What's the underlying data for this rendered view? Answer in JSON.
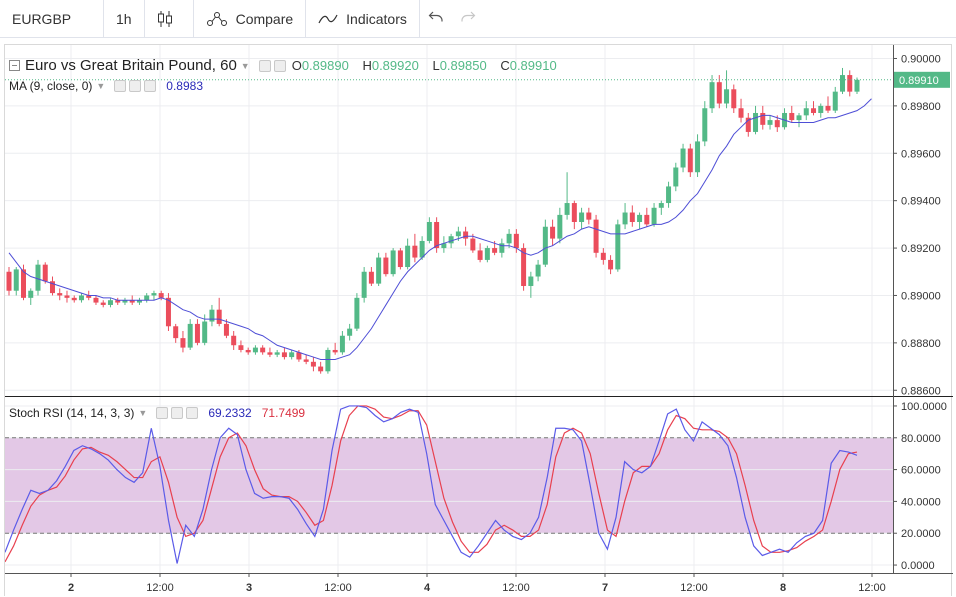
{
  "toolbar": {
    "symbol": "EURGBP",
    "interval": "1h",
    "compare": "Compare",
    "indicators": "Indicators"
  },
  "main": {
    "title": "Euro vs Great Britain Pound, 60",
    "open_label": "O",
    "open": "0.89890",
    "high_label": "H",
    "high": "0.89920",
    "low_label": "L",
    "low": "0.89850",
    "close_label": "C",
    "close": "0.89910",
    "ma_label": "MA (9, close, 0)",
    "ma_value": "0.8983",
    "last_price": "0.89910",
    "y_ticks": [
      "0.90000",
      "0.89800",
      "0.89600",
      "0.89400",
      "0.89200",
      "0.89000",
      "0.88800",
      "0.88600"
    ]
  },
  "rsi": {
    "label": "Stoch RSI (14, 14, 3, 3)",
    "k_value": "69.2332",
    "d_value": "71.7499",
    "y_ticks": [
      "100.0000",
      "80.0000",
      "60.0000",
      "40.0000",
      "20.0000",
      "0.0000"
    ]
  },
  "x_axis": [
    "2",
    "12:00",
    "3",
    "12:00",
    "4",
    "12:00",
    "7",
    "12:00",
    "8",
    "12:00"
  ],
  "colors": {
    "up": "#53b987",
    "down": "#eb4d5c",
    "ma": "#4e4ed6",
    "k_line": "#5b5be8",
    "d_line": "#e8404f",
    "band": "#e3c8e6"
  },
  "chart_data": {
    "type": "candlestick",
    "ylim": [
      0.8858,
      0.9004
    ],
    "x_labels": [
      "2",
      "12:00",
      "3",
      "12:00",
      "4",
      "12:00",
      "7",
      "12:00",
      "8",
      "12:00"
    ],
    "candles": [
      [
        0.891,
        0.8912,
        0.89,
        0.8902
      ],
      [
        0.8902,
        0.8912,
        0.89,
        0.8911
      ],
      [
        0.8911,
        0.8913,
        0.8898,
        0.8899
      ],
      [
        0.8899,
        0.8903,
        0.8896,
        0.8902
      ],
      [
        0.8902,
        0.8915,
        0.89,
        0.8913
      ],
      [
        0.8913,
        0.8914,
        0.8905,
        0.8906
      ],
      [
        0.8906,
        0.8908,
        0.89,
        0.8901
      ],
      [
        0.8901,
        0.8903,
        0.8898,
        0.89
      ],
      [
        0.89,
        0.8902,
        0.8897,
        0.8899
      ],
      [
        0.8899,
        0.89,
        0.8897,
        0.8898
      ],
      [
        0.8898,
        0.8901,
        0.8897,
        0.89
      ],
      [
        0.89,
        0.8902,
        0.8898,
        0.8899
      ],
      [
        0.8899,
        0.89,
        0.8896,
        0.8897
      ],
      [
        0.8897,
        0.8898,
        0.8895,
        0.8896
      ],
      [
        0.8896,
        0.8899,
        0.8895,
        0.8898
      ],
      [
        0.8898,
        0.8899,
        0.8896,
        0.8897
      ],
      [
        0.8897,
        0.8899,
        0.8896,
        0.8898
      ],
      [
        0.8898,
        0.89,
        0.8896,
        0.8897
      ],
      [
        0.8897,
        0.8899,
        0.8896,
        0.8898
      ],
      [
        0.8898,
        0.8901,
        0.8897,
        0.89
      ],
      [
        0.89,
        0.8902,
        0.8898,
        0.8901
      ],
      [
        0.8901,
        0.8902,
        0.8898,
        0.8899
      ],
      [
        0.8899,
        0.8901,
        0.8885,
        0.8887
      ],
      [
        0.8887,
        0.8888,
        0.888,
        0.8882
      ],
      [
        0.8882,
        0.8885,
        0.8876,
        0.8878
      ],
      [
        0.8878,
        0.889,
        0.8877,
        0.8888
      ],
      [
        0.8888,
        0.889,
        0.8879,
        0.888
      ],
      [
        0.888,
        0.8892,
        0.8879,
        0.8889
      ],
      [
        0.8889,
        0.8896,
        0.8887,
        0.8894
      ],
      [
        0.8894,
        0.8899,
        0.8887,
        0.8888
      ],
      [
        0.8888,
        0.889,
        0.8882,
        0.8883
      ],
      [
        0.8883,
        0.8885,
        0.8877,
        0.8879
      ],
      [
        0.8879,
        0.8881,
        0.8876,
        0.8877
      ],
      [
        0.8877,
        0.8878,
        0.8875,
        0.8876
      ],
      [
        0.8876,
        0.8879,
        0.8875,
        0.8878
      ],
      [
        0.8878,
        0.8879,
        0.8875,
        0.8876
      ],
      [
        0.8876,
        0.8878,
        0.8874,
        0.8875
      ],
      [
        0.8875,
        0.8877,
        0.8874,
        0.8876
      ],
      [
        0.8876,
        0.8878,
        0.8873,
        0.8874
      ],
      [
        0.8874,
        0.8877,
        0.8873,
        0.8876
      ],
      [
        0.8876,
        0.8877,
        0.8872,
        0.8873
      ],
      [
        0.8873,
        0.8875,
        0.8871,
        0.8872
      ],
      [
        0.8872,
        0.8874,
        0.8868,
        0.887
      ],
      [
        0.887,
        0.8872,
        0.8867,
        0.8868
      ],
      [
        0.8868,
        0.8878,
        0.8867,
        0.8877
      ],
      [
        0.8877,
        0.888,
        0.8875,
        0.8876
      ],
      [
        0.8876,
        0.8885,
        0.8875,
        0.8883
      ],
      [
        0.8883,
        0.8888,
        0.8881,
        0.8886
      ],
      [
        0.8886,
        0.8901,
        0.8885,
        0.8899
      ],
      [
        0.8899,
        0.8912,
        0.8897,
        0.891
      ],
      [
        0.891,
        0.8912,
        0.8904,
        0.8905
      ],
      [
        0.8905,
        0.8918,
        0.8904,
        0.8916
      ],
      [
        0.8916,
        0.8918,
        0.8908,
        0.8909
      ],
      [
        0.8909,
        0.892,
        0.8908,
        0.8919
      ],
      [
        0.8919,
        0.892,
        0.8911,
        0.8912
      ],
      [
        0.8912,
        0.8924,
        0.8911,
        0.8921
      ],
      [
        0.8921,
        0.8926,
        0.8914,
        0.8916
      ],
      [
        0.8916,
        0.8925,
        0.8915,
        0.8923
      ],
      [
        0.8923,
        0.8933,
        0.8922,
        0.8931
      ],
      [
        0.8931,
        0.8933,
        0.8918,
        0.892
      ],
      [
        0.892,
        0.8925,
        0.8918,
        0.8922
      ],
      [
        0.8922,
        0.8926,
        0.892,
        0.8925
      ],
      [
        0.8925,
        0.8929,
        0.8923,
        0.8927
      ],
      [
        0.8927,
        0.8929,
        0.8921,
        0.8924
      ],
      [
        0.8924,
        0.8926,
        0.8918,
        0.8919
      ],
      [
        0.8919,
        0.8922,
        0.8914,
        0.8915
      ],
      [
        0.8915,
        0.8921,
        0.8914,
        0.892
      ],
      [
        0.892,
        0.8923,
        0.8917,
        0.8918
      ],
      [
        0.8918,
        0.8924,
        0.8916,
        0.8922
      ],
      [
        0.8922,
        0.8928,
        0.892,
        0.8926
      ],
      [
        0.8926,
        0.8928,
        0.8918,
        0.892
      ],
      [
        0.892,
        0.8922,
        0.8902,
        0.8904
      ],
      [
        0.8904,
        0.891,
        0.8899,
        0.8908
      ],
      [
        0.8908,
        0.8915,
        0.8906,
        0.8913
      ],
      [
        0.8913,
        0.8932,
        0.8912,
        0.8929
      ],
      [
        0.8929,
        0.8932,
        0.8921,
        0.8924
      ],
      [
        0.8924,
        0.8937,
        0.8922,
        0.8934
      ],
      [
        0.8934,
        0.8952,
        0.8932,
        0.8939
      ],
      [
        0.8939,
        0.894,
        0.8928,
        0.8931
      ],
      [
        0.8931,
        0.8937,
        0.8928,
        0.8935
      ],
      [
        0.8935,
        0.8937,
        0.893,
        0.8932
      ],
      [
        0.8932,
        0.8934,
        0.8916,
        0.8918
      ],
      [
        0.8918,
        0.892,
        0.8913,
        0.8915
      ],
      [
        0.8915,
        0.8917,
        0.8909,
        0.8911
      ],
      [
        0.8911,
        0.8932,
        0.891,
        0.893
      ],
      [
        0.893,
        0.8939,
        0.8928,
        0.8935
      ],
      [
        0.8935,
        0.8938,
        0.8929,
        0.8931
      ],
      [
        0.8931,
        0.8935,
        0.8928,
        0.8934
      ],
      [
        0.8934,
        0.8937,
        0.8929,
        0.893
      ],
      [
        0.893,
        0.8939,
        0.8929,
        0.8937
      ],
      [
        0.8937,
        0.894,
        0.8934,
        0.8939
      ],
      [
        0.8939,
        0.8948,
        0.8937,
        0.8946
      ],
      [
        0.8946,
        0.8956,
        0.8944,
        0.8954
      ],
      [
        0.8954,
        0.8964,
        0.8952,
        0.8962
      ],
      [
        0.8962,
        0.8964,
        0.895,
        0.8952
      ],
      [
        0.8952,
        0.8968,
        0.895,
        0.8965
      ],
      [
        0.8965,
        0.8982,
        0.8963,
        0.8979
      ],
      [
        0.8979,
        0.8993,
        0.8977,
        0.899
      ],
      [
        0.899,
        0.8993,
        0.8979,
        0.8981
      ],
      [
        0.8981,
        0.8995,
        0.8979,
        0.8987
      ],
      [
        0.8987,
        0.8989,
        0.8977,
        0.8979
      ],
      [
        0.8979,
        0.8983,
        0.8973,
        0.8975
      ],
      [
        0.8975,
        0.8977,
        0.8967,
        0.8969
      ],
      [
        0.8969,
        0.898,
        0.8968,
        0.8977
      ],
      [
        0.8977,
        0.898,
        0.897,
        0.8972
      ],
      [
        0.8972,
        0.8976,
        0.897,
        0.8974
      ],
      [
        0.8974,
        0.8976,
        0.8969,
        0.8971
      ],
      [
        0.8971,
        0.8979,
        0.897,
        0.8977
      ],
      [
        0.8977,
        0.898,
        0.8973,
        0.8974
      ],
      [
        0.8974,
        0.8977,
        0.8971,
        0.8976
      ],
      [
        0.8976,
        0.8982,
        0.8974,
        0.8979
      ],
      [
        0.8979,
        0.8982,
        0.8976,
        0.8977
      ],
      [
        0.8977,
        0.8981,
        0.8975,
        0.898
      ],
      [
        0.898,
        0.8984,
        0.8977,
        0.8978
      ],
      [
        0.8978,
        0.8988,
        0.8977,
        0.8986
      ],
      [
        0.8986,
        0.8996,
        0.8985,
        0.8993
      ],
      [
        0.8993,
        0.8995,
        0.8984,
        0.8986
      ],
      [
        0.8986,
        0.8992,
        0.8985,
        0.8991
      ]
    ],
    "ma": [
      0.8918,
      0.8914,
      0.891,
      0.8908,
      0.8907,
      0.8906,
      0.8905,
      0.8904,
      0.8903,
      0.8902,
      0.8901,
      0.89,
      0.89,
      0.8899,
      0.8899,
      0.8898,
      0.8898,
      0.8898,
      0.8898,
      0.8898,
      0.8898,
      0.8899,
      0.8898,
      0.8896,
      0.8894,
      0.8893,
      0.8891,
      0.889,
      0.889,
      0.889,
      0.8889,
      0.8888,
      0.8887,
      0.8886,
      0.8884,
      0.8883,
      0.8881,
      0.8879,
      0.8878,
      0.8877,
      0.8876,
      0.8875,
      0.8874,
      0.8873,
      0.8873,
      0.8873,
      0.8874,
      0.8875,
      0.8878,
      0.8882,
      0.8886,
      0.8891,
      0.8896,
      0.8901,
      0.8906,
      0.891,
      0.8913,
      0.8916,
      0.8919,
      0.8921,
      0.8922,
      0.8923,
      0.8924,
      0.8925,
      0.8925,
      0.8924,
      0.8923,
      0.8922,
      0.8921,
      0.8921,
      0.892,
      0.8918,
      0.8917,
      0.8918,
      0.892,
      0.8921,
      0.8923,
      0.8925,
      0.8926,
      0.8928,
      0.8929,
      0.8928,
      0.8927,
      0.8926,
      0.8926,
      0.8926,
      0.8927,
      0.8928,
      0.8929,
      0.893,
      0.893,
      0.8931,
      0.8933,
      0.8936,
      0.894,
      0.8943,
      0.8948,
      0.8953,
      0.8959,
      0.8963,
      0.8968,
      0.8971,
      0.8974,
      0.8975,
      0.8976,
      0.8976,
      0.8975,
      0.8974,
      0.8973,
      0.8973,
      0.8973,
      0.8973,
      0.8974,
      0.8975,
      0.8975,
      0.8976,
      0.8977,
      0.8978,
      0.898,
      0.8983
    ],
    "stoch_ylim": [
      -5,
      105
    ],
    "stoch_band": [
      20,
      80
    ],
    "stoch_k": [
      8,
      22,
      35,
      47,
      45,
      47,
      53,
      62,
      72,
      75,
      73,
      70,
      66,
      60,
      55,
      52,
      58,
      86,
      62,
      28,
      1,
      25,
      18,
      35,
      60,
      80,
      86,
      82,
      60,
      45,
      42,
      43,
      43,
      42,
      35,
      26,
      18,
      35,
      72,
      98,
      100,
      100,
      99,
      94,
      90,
      92,
      96,
      98,
      96,
      70,
      38,
      28,
      18,
      8,
      5,
      12,
      20,
      28,
      22,
      18,
      16,
      20,
      30,
      55,
      86,
      86,
      85,
      78,
      50,
      20,
      10,
      30,
      65,
      60,
      58,
      62,
      78,
      95,
      98,
      85,
      78,
      90,
      86,
      82,
      75,
      55,
      30,
      12,
      6,
      8,
      10,
      8,
      14,
      18,
      20,
      28,
      64,
      72,
      71,
      69
    ],
    "stoch_d": [
      2,
      12,
      25,
      37,
      44,
      47,
      49,
      56,
      66,
      73,
      74,
      71,
      69,
      65,
      60,
      55,
      55,
      65,
      68,
      52,
      30,
      18,
      20,
      28,
      48,
      68,
      80,
      83,
      75,
      60,
      48,
      44,
      43,
      43,
      40,
      33,
      25,
      28,
      50,
      78,
      94,
      100,
      100,
      98,
      93,
      92,
      94,
      97,
      97,
      88,
      65,
      42,
      27,
      15,
      8,
      8,
      13,
      22,
      25,
      22,
      18,
      18,
      22,
      38,
      68,
      83,
      86,
      83,
      70,
      45,
      22,
      18,
      40,
      58,
      62,
      62,
      70,
      85,
      94,
      92,
      86,
      85,
      85,
      84,
      80,
      70,
      50,
      28,
      12,
      8,
      8,
      9,
      11,
      15,
      18,
      22,
      40,
      60,
      70,
      71
    ]
  }
}
